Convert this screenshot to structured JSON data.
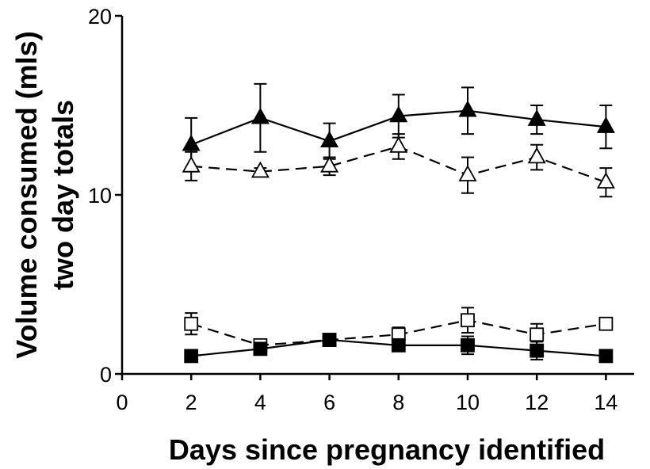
{
  "chart_data": {
    "type": "line",
    "title": "",
    "xlabel": "Days since pregnancy identified",
    "ylabel": [
      "Volume consumed (mls)",
      "two day totals"
    ],
    "xlim": [
      0,
      15
    ],
    "ylim": [
      0,
      20
    ],
    "x_ticks": [
      "0",
      "2",
      "4",
      "6",
      "8",
      "10",
      "12",
      "14"
    ],
    "y_ticks": [
      "0",
      "10",
      "20"
    ],
    "x": [
      2,
      4,
      6,
      8,
      10,
      12,
      14
    ],
    "grid": false,
    "legend": "none",
    "series": [
      {
        "marker": "filled-triangle",
        "line": "solid",
        "values": [
          12.8,
          14.3,
          13.0,
          14.4,
          14.7,
          14.2,
          13.8
        ],
        "err": [
          1.5,
          1.9,
          1.0,
          1.2,
          1.3,
          0.8,
          1.2
        ]
      },
      {
        "marker": "open-triangle",
        "line": "dashed",
        "values": [
          11.6,
          11.3,
          11.6,
          12.7,
          11.1,
          12.1,
          10.7
        ],
        "err": [
          0.8,
          0.2,
          0.5,
          0.7,
          1.0,
          0.7,
          0.8
        ]
      },
      {
        "marker": "open-square",
        "line": "dashed",
        "values": [
          2.8,
          1.6,
          1.9,
          2.2,
          3.0,
          2.2,
          2.8
        ],
        "err": [
          0.6,
          0.3,
          0.2,
          0.4,
          0.7,
          0.6,
          0.2
        ]
      },
      {
        "marker": "filled-square",
        "line": "solid",
        "values": [
          1.0,
          1.4,
          1.9,
          1.6,
          1.6,
          1.3,
          1.0
        ],
        "err": [
          0.1,
          0.3,
          0.1,
          0.2,
          0.5,
          0.5,
          0.2
        ]
      }
    ]
  }
}
